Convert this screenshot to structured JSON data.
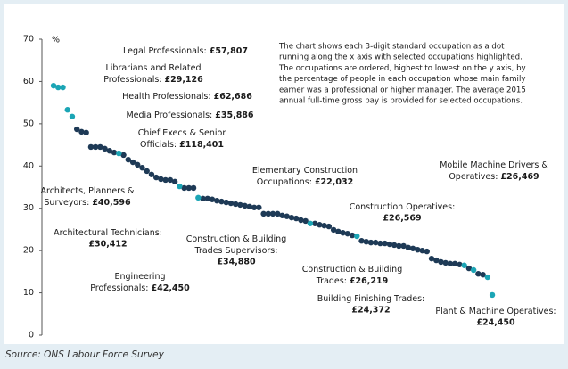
{
  "chart_data": {
    "type": "scatter",
    "y_label": "%",
    "note": [
      "The chart shows each 3-digit standard occupation as a dot",
      "running along the x axis with selected occupations highlighted.",
      "The occupations are ordered, highest to lowest on the y axis, by",
      "the percentage of people in each occupation whose main family",
      "earner was a professional or higher manager. The average 2015",
      "annual full-time gross pay is provided for selected occupations."
    ],
    "source": "Source: ONS Labour Force Survey",
    "xlim": [
      0,
      96
    ],
    "ylim": [
      0,
      70
    ],
    "yticks": [
      0,
      10,
      20,
      30,
      40,
      50,
      60,
      70
    ],
    "series": [
      {
        "color": "#1e3a56",
        "x": [
          6,
          7,
          8,
          9,
          10,
          11,
          12,
          13,
          14,
          16,
          17,
          18,
          19,
          20,
          21,
          22,
          23,
          24,
          25,
          26,
          27,
          29,
          30,
          31,
          33,
          34,
          35,
          36,
          37,
          38,
          39,
          40,
          41,
          42,
          43,
          44,
          45,
          46,
          47,
          48,
          49,
          50,
          51,
          52,
          53,
          54,
          55,
          57,
          58,
          59,
          60,
          61,
          62,
          63,
          64,
          65,
          67,
          68,
          69,
          70,
          71,
          72,
          73,
          74,
          75,
          76,
          77,
          78,
          79,
          80,
          81,
          82,
          83,
          84,
          85,
          86,
          87,
          88,
          90,
          92,
          93
        ],
        "values": [
          48.7,
          48.1,
          47.9,
          44.5,
          44.5,
          44.5,
          44.1,
          43.6,
          43.2,
          42.6,
          41.5,
          40.9,
          40.3,
          39.6,
          38.8,
          38.0,
          37.3,
          36.9,
          36.7,
          36.7,
          36.3,
          34.8,
          34.8,
          34.8,
          32.3,
          32.3,
          32.1,
          31.8,
          31.6,
          31.4,
          31.2,
          31.0,
          30.8,
          30.6,
          30.4,
          30.2,
          30.2,
          28.7,
          28.7,
          28.7,
          28.7,
          28.3,
          28.1,
          27.8,
          27.6,
          27.2,
          27.0,
          26.4,
          26.1,
          25.9,
          25.7,
          24.9,
          24.5,
          24.2,
          24.0,
          23.6,
          22.3,
          22.1,
          21.9,
          21.9,
          21.7,
          21.7,
          21.5,
          21.3,
          21.1,
          21.1,
          20.7,
          20.5,
          20.2,
          20.0,
          19.8,
          18.1,
          17.7,
          17.3,
          17.1,
          16.9,
          16.9,
          16.7,
          15.8,
          14.5,
          14.3
        ]
      },
      {
        "color": "#1ba5b5",
        "x": [
          1,
          2,
          3,
          4,
          5,
          15,
          28,
          32,
          56,
          66,
          89,
          91,
          94,
          95
        ],
        "values": [
          59.0,
          58.6,
          58.6,
          53.3,
          51.7,
          43.0,
          35.2,
          32.5,
          26.4,
          23.4,
          16.5,
          15.4,
          13.7,
          9.5
        ]
      }
    ],
    "annotations": [
      {
        "lines": [
          "Legal Professionals:"
        ],
        "pay": "£57,807"
      },
      {
        "lines": [
          "Librarians and Related",
          "Professionals:"
        ],
        "pay": "£29,126"
      },
      {
        "lines": [
          "Health Professionals:"
        ],
        "pay": "£62,686"
      },
      {
        "lines": [
          "Media Professionals:"
        ],
        "pay": "£35,886"
      },
      {
        "lines": [
          "Chief Execs & Senior",
          "Officials:"
        ],
        "pay": "£118,401"
      },
      {
        "lines": [
          "Elementary Construction",
          "Occupations:"
        ],
        "pay": "£22,032"
      },
      {
        "lines": [
          "Mobile Machine Drivers &",
          "Operatives:"
        ],
        "pay": "£26,469"
      },
      {
        "lines": [
          "Architects, Planners &",
          "Surveyors:"
        ],
        "pay": "£40,596"
      },
      {
        "lines": [
          "Construction Operatives:"
        ],
        "pay": "£26,569"
      },
      {
        "lines": [
          "Architectural Technicians:"
        ],
        "pay": "£30,412"
      },
      {
        "lines": [
          "Construction & Building",
          "Trades Supervisors:"
        ],
        "pay": "£34,880"
      },
      {
        "lines": [
          "Construction & Building",
          "Trades:"
        ],
        "pay": "£26,219"
      },
      {
        "lines": [
          "Engineering",
          "Professionals:"
        ],
        "pay": "£42,450"
      },
      {
        "lines": [
          "Building Finishing Trades:"
        ],
        "pay": "£24,372"
      },
      {
        "lines": [
          "Plant & Machine Operatives:"
        ],
        "pay": "£24,450"
      }
    ]
  }
}
